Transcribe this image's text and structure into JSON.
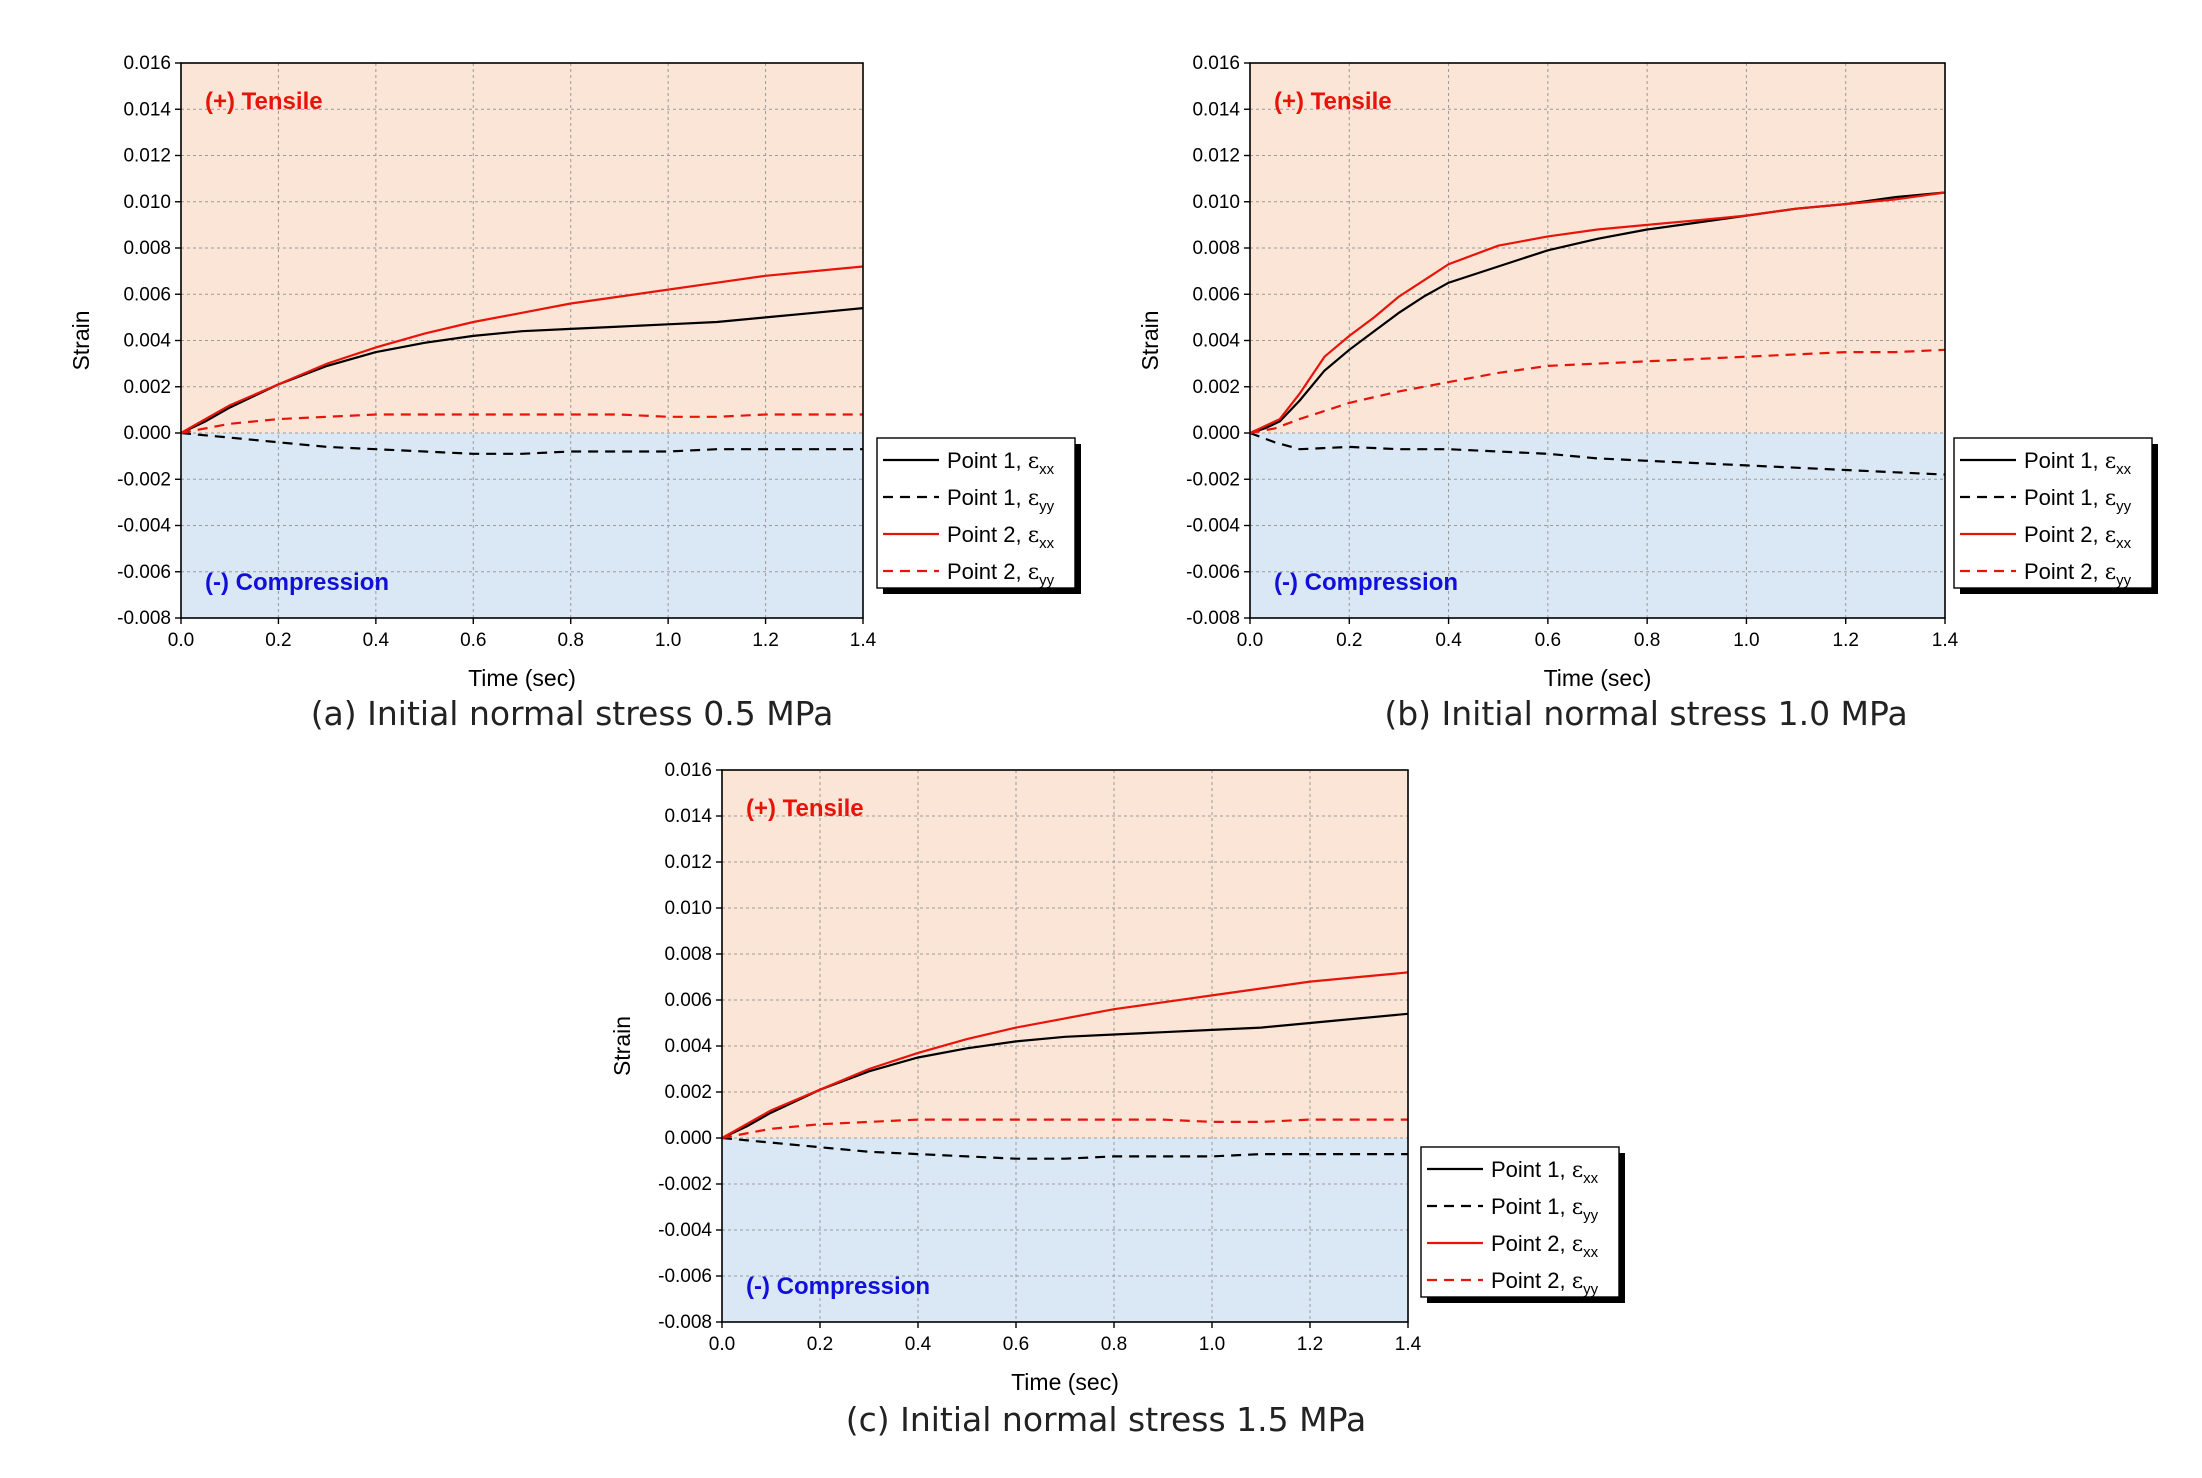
{
  "chart_data": [
    {
      "type": "line",
      "caption": "(a) Initial normal stress 0.5 MPa",
      "xlabel": "Time (sec)",
      "ylabel": "Strain",
      "xlim": [
        0.0,
        1.4
      ],
      "ylim": [
        -0.008,
        0.016
      ],
      "xticks": [
        "0.0",
        "0.2",
        "0.4",
        "0.6",
        "0.8",
        "1.0",
        "1.2",
        "1.4"
      ],
      "yticks": [
        "-0.008",
        "-0.006",
        "-0.004",
        "-0.002",
        "0.000",
        "0.002",
        "0.004",
        "0.006",
        "0.008",
        "0.010",
        "0.012",
        "0.014",
        "0.016"
      ],
      "grid": true,
      "regions": {
        "tensile_label": "(+) Tensile",
        "compression_label": "(-) Compression",
        "tensile_color": "#fbe5d6",
        "compression_color": "#dae8f5"
      },
      "legend": {
        "placement": "right",
        "entries": [
          {
            "prefix": "Point 1, ",
            "sym": "ε",
            "sub": "xx"
          },
          {
            "prefix": "Point 1, ",
            "sym": "ε",
            "sub": "yy"
          },
          {
            "prefix": "Point 2, ",
            "sym": "ε",
            "sub": "xx"
          },
          {
            "prefix": "Point 2, ",
            "sym": "ε",
            "sub": "yy"
          }
        ]
      },
      "series": [
        {
          "name": "Point 1, εxx",
          "color": "#000000",
          "dash": false,
          "x": [
            0,
            0.05,
            0.1,
            0.2,
            0.3,
            0.4,
            0.5,
            0.6,
            0.7,
            0.8,
            0.9,
            1.0,
            1.1,
            1.2,
            1.3,
            1.4
          ],
          "y": [
            0,
            0.0005,
            0.0011,
            0.0021,
            0.0029,
            0.0035,
            0.0039,
            0.0042,
            0.0044,
            0.0045,
            0.0046,
            0.0047,
            0.0048,
            0.005,
            0.0052,
            0.0054
          ]
        },
        {
          "name": "Point 1, εyy",
          "color": "#000000",
          "dash": true,
          "x": [
            0,
            0.1,
            0.2,
            0.3,
            0.4,
            0.5,
            0.6,
            0.7,
            0.8,
            0.9,
            1.0,
            1.1,
            1.2,
            1.3,
            1.4
          ],
          "y": [
            0,
            -0.0002,
            -0.0004,
            -0.0006,
            -0.0007,
            -0.0008,
            -0.0009,
            -0.0009,
            -0.0008,
            -0.0008,
            -0.0008,
            -0.0007,
            -0.0007,
            -0.0007,
            -0.0007
          ]
        },
        {
          "name": "Point 2, εxx",
          "color": "#e8140a",
          "dash": false,
          "x": [
            0,
            0.05,
            0.1,
            0.2,
            0.3,
            0.4,
            0.5,
            0.6,
            0.7,
            0.8,
            0.9,
            1.0,
            1.1,
            1.2,
            1.3,
            1.4
          ],
          "y": [
            0,
            0.0006,
            0.0012,
            0.0021,
            0.003,
            0.0037,
            0.0043,
            0.0048,
            0.0052,
            0.0056,
            0.0059,
            0.0062,
            0.0065,
            0.0068,
            0.007,
            0.0072
          ]
        },
        {
          "name": "Point 2, εyy",
          "color": "#e8140a",
          "dash": true,
          "x": [
            0,
            0.1,
            0.2,
            0.3,
            0.4,
            0.5,
            0.6,
            0.7,
            0.8,
            0.9,
            1.0,
            1.1,
            1.2,
            1.3,
            1.4
          ],
          "y": [
            0,
            0.0004,
            0.0006,
            0.0007,
            0.0008,
            0.0008,
            0.0008,
            0.0008,
            0.0008,
            0.0008,
            0.0007,
            0.0007,
            0.0008,
            0.0008,
            0.0008
          ]
        }
      ]
    },
    {
      "type": "line",
      "caption": "(b) Initial normal stress 1.0 MPa",
      "xlabel": "Time (sec)",
      "ylabel": "Strain",
      "xlim": [
        0.0,
        1.4
      ],
      "ylim": [
        -0.008,
        0.016
      ],
      "xticks": [
        "0.0",
        "0.2",
        "0.4",
        "0.6",
        "0.8",
        "1.0",
        "1.2",
        "1.4"
      ],
      "yticks": [
        "-0.008",
        "-0.006",
        "-0.004",
        "-0.002",
        "0.000",
        "0.002",
        "0.004",
        "0.006",
        "0.008",
        "0.010",
        "0.012",
        "0.014",
        "0.016"
      ],
      "grid": true,
      "regions": {
        "tensile_label": "(+) Tensile",
        "compression_label": "(-) Compression",
        "tensile_color": "#fbe5d6",
        "compression_color": "#dae8f5"
      },
      "legend": {
        "placement": "right",
        "entries": [
          {
            "prefix": "Point 1, ",
            "sym": "ε",
            "sub": "xx"
          },
          {
            "prefix": "Point 1, ",
            "sym": "ε",
            "sub": "yy"
          },
          {
            "prefix": "Point 2, ",
            "sym": "ε",
            "sub": "xx"
          },
          {
            "prefix": "Point 2, ",
            "sym": "ε",
            "sub": "yy"
          }
        ]
      },
      "series": [
        {
          "name": "Point 1, εxx",
          "color": "#000000",
          "dash": false,
          "x": [
            0,
            0.03,
            0.06,
            0.1,
            0.15,
            0.2,
            0.25,
            0.3,
            0.35,
            0.4,
            0.5,
            0.6,
            0.7,
            0.8,
            0.9,
            1.0,
            1.1,
            1.2,
            1.3,
            1.4
          ],
          "y": [
            0,
            0.0002,
            0.0005,
            0.0014,
            0.0027,
            0.0036,
            0.0044,
            0.0052,
            0.0059,
            0.0065,
            0.0072,
            0.0079,
            0.0084,
            0.0088,
            0.0091,
            0.0094,
            0.0097,
            0.0099,
            0.0102,
            0.0104
          ]
        },
        {
          "name": "Point 1, εyy",
          "color": "#000000",
          "dash": true,
          "x": [
            0,
            0.05,
            0.1,
            0.2,
            0.3,
            0.4,
            0.5,
            0.6,
            0.7,
            0.8,
            0.9,
            1.0,
            1.1,
            1.2,
            1.3,
            1.4
          ],
          "y": [
            0,
            -0.0004,
            -0.0007,
            -0.0006,
            -0.0007,
            -0.0007,
            -0.0008,
            -0.0009,
            -0.0011,
            -0.0012,
            -0.0013,
            -0.0014,
            -0.0015,
            -0.0016,
            -0.0017,
            -0.0018
          ]
        },
        {
          "name": "Point 2, εxx",
          "color": "#e8140a",
          "dash": false,
          "x": [
            0,
            0.03,
            0.06,
            0.1,
            0.15,
            0.2,
            0.25,
            0.3,
            0.35,
            0.4,
            0.5,
            0.6,
            0.7,
            0.8,
            0.9,
            1.0,
            1.1,
            1.2,
            1.3,
            1.4
          ],
          "y": [
            0,
            0.0003,
            0.0006,
            0.0017,
            0.0033,
            0.0042,
            0.005,
            0.0059,
            0.0066,
            0.0073,
            0.0081,
            0.0085,
            0.0088,
            0.009,
            0.0092,
            0.0094,
            0.0097,
            0.0099,
            0.0101,
            0.0104
          ]
        },
        {
          "name": "Point 2, εyy",
          "color": "#e8140a",
          "dash": true,
          "x": [
            0,
            0.05,
            0.1,
            0.2,
            0.3,
            0.4,
            0.5,
            0.6,
            0.7,
            0.8,
            0.9,
            1.0,
            1.1,
            1.2,
            1.3,
            1.4
          ],
          "y": [
            0,
            0.0002,
            0.0006,
            0.0013,
            0.0018,
            0.0022,
            0.0026,
            0.0029,
            0.003,
            0.0031,
            0.0032,
            0.0033,
            0.0034,
            0.0035,
            0.0035,
            0.0036
          ]
        }
      ]
    },
    {
      "type": "line",
      "caption": "(c) Initial normal stress 1.5 MPa",
      "xlabel": "Time (sec)",
      "ylabel": "Strain",
      "xlim": [
        0.0,
        1.4
      ],
      "ylim": [
        -0.008,
        0.016
      ],
      "xticks": [
        "0.0",
        "0.2",
        "0.4",
        "0.6",
        "0.8",
        "1.0",
        "1.2",
        "1.4"
      ],
      "yticks": [
        "-0.008",
        "-0.006",
        "-0.004",
        "-0.002",
        "0.000",
        "0.002",
        "0.004",
        "0.006",
        "0.008",
        "0.010",
        "0.012",
        "0.014",
        "0.016"
      ],
      "grid": true,
      "regions": {
        "tensile_label": "(+) Tensile",
        "compression_label": "(-) Compression",
        "tensile_color": "#fbe5d6",
        "compression_color": "#dae8f5"
      },
      "legend": {
        "placement": "right",
        "entries": [
          {
            "prefix": "Point 1, ",
            "sym": "ε",
            "sub": "xx"
          },
          {
            "prefix": "Point 1, ",
            "sym": "ε",
            "sub": "yy"
          },
          {
            "prefix": "Point 2, ",
            "sym": "ε",
            "sub": "xx"
          },
          {
            "prefix": "Point 2, ",
            "sym": "ε",
            "sub": "yy"
          }
        ]
      },
      "series": [
        {
          "name": "Point 1, εxx",
          "color": "#000000",
          "dash": false,
          "x": [
            0,
            0.05,
            0.1,
            0.2,
            0.3,
            0.4,
            0.5,
            0.6,
            0.7,
            0.8,
            0.9,
            1.0,
            1.1,
            1.2,
            1.3,
            1.4
          ],
          "y": [
            0,
            0.0005,
            0.0011,
            0.0021,
            0.0029,
            0.0035,
            0.0039,
            0.0042,
            0.0044,
            0.0045,
            0.0046,
            0.0047,
            0.0048,
            0.005,
            0.0052,
            0.0054
          ]
        },
        {
          "name": "Point 1, εyy",
          "color": "#000000",
          "dash": true,
          "x": [
            0,
            0.1,
            0.2,
            0.3,
            0.4,
            0.5,
            0.6,
            0.7,
            0.8,
            0.9,
            1.0,
            1.1,
            1.2,
            1.3,
            1.4
          ],
          "y": [
            0,
            -0.0002,
            -0.0004,
            -0.0006,
            -0.0007,
            -0.0008,
            -0.0009,
            -0.0009,
            -0.0008,
            -0.0008,
            -0.0008,
            -0.0007,
            -0.0007,
            -0.0007,
            -0.0007
          ]
        },
        {
          "name": "Point 2, εxx",
          "color": "#e8140a",
          "dash": false,
          "x": [
            0,
            0.05,
            0.1,
            0.2,
            0.3,
            0.4,
            0.5,
            0.6,
            0.7,
            0.8,
            0.9,
            1.0,
            1.1,
            1.2,
            1.3,
            1.4
          ],
          "y": [
            0,
            0.0006,
            0.0012,
            0.0021,
            0.003,
            0.0037,
            0.0043,
            0.0048,
            0.0052,
            0.0056,
            0.0059,
            0.0062,
            0.0065,
            0.0068,
            0.007,
            0.0072
          ]
        },
        {
          "name": "Point 2, εyy",
          "color": "#e8140a",
          "dash": true,
          "x": [
            0,
            0.1,
            0.2,
            0.3,
            0.4,
            0.5,
            0.6,
            0.7,
            0.8,
            0.9,
            1.0,
            1.1,
            1.2,
            1.3,
            1.4
          ],
          "y": [
            0,
            0.0004,
            0.0006,
            0.0007,
            0.0008,
            0.0008,
            0.0008,
            0.0008,
            0.0008,
            0.0008,
            0.0007,
            0.0007,
            0.0008,
            0.0008,
            0.0008
          ]
        }
      ]
    }
  ]
}
